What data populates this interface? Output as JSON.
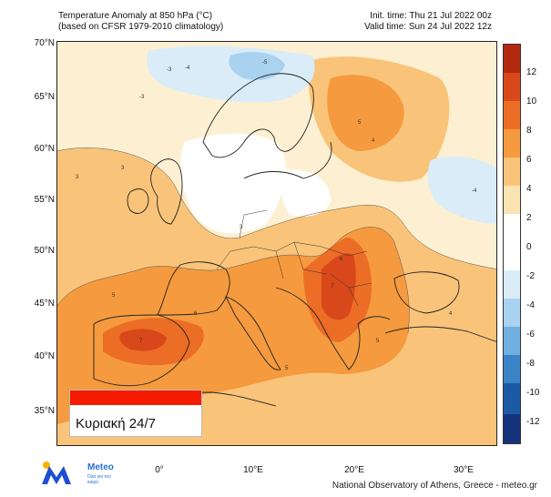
{
  "header": {
    "title_line1": "Temperature Anomaly at 850 hPa (°C)",
    "title_line2": "(based on CFSR 1979-2010 climatology)",
    "init_time": "Init. time: Thu 21 Jul 2022 00z",
    "valid_time": "Valid time: Sun 24 Jul 2022 12z"
  },
  "axes": {
    "lat_labels": [
      "70°N",
      "65°N",
      "60°N",
      "55°N",
      "50°N",
      "45°N",
      "40°N",
      "35°N"
    ],
    "lon_labels": [
      "0°",
      "10°E",
      "20°E",
      "30°E"
    ]
  },
  "colorbar": {
    "labels": [
      "12",
      "10",
      "8",
      "6",
      "4",
      "2",
      "0",
      "-2",
      "-4",
      "-6",
      "-8",
      "-10",
      "-12"
    ],
    "colors": [
      "#b42a10",
      "#d8481a",
      "#ec6d25",
      "#f59a3e",
      "#f9c47a",
      "#fbe3b2",
      "#ffffff",
      "#ffffff",
      "#d9ecf8",
      "#a9d2f0",
      "#6fb0e0",
      "#3b84c6",
      "#1d5aa5",
      "#15337a"
    ]
  },
  "overlay": {
    "day_label": "Κυριακή 24/7",
    "bar_color": "#f51b00"
  },
  "branding": {
    "logo_text": "Meteo",
    "logo_tagline": "Όλα για τον καιρό",
    "credit": "National Observatory of Athens, Greece - meteo.gr"
  },
  "contour_labels": {
    "values": [
      "-3",
      "-4",
      "-5",
      "3",
      "4",
      "5",
      "6",
      "7"
    ]
  }
}
